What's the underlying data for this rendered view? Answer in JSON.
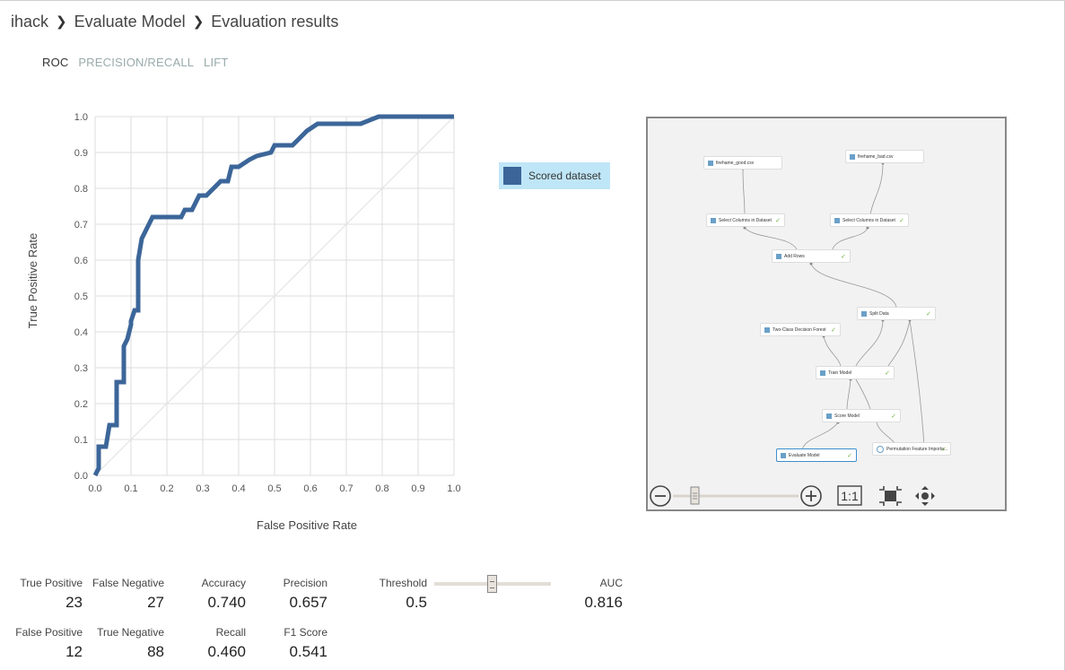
{
  "breadcrumb": {
    "items": [
      "ihack",
      "Evaluate Model",
      "Evaluation results"
    ]
  },
  "tabs": [
    {
      "label": "ROC",
      "active": true
    },
    {
      "label": "PRECISION/RECALL",
      "active": false
    },
    {
      "label": "LIFT",
      "active": false
    }
  ],
  "chart_data": {
    "type": "line",
    "xlabel": "False Positive Rate",
    "ylabel": "True Positive Rate",
    "xlim": [
      0.0,
      1.0
    ],
    "ylim": [
      0.0,
      1.0
    ],
    "x_ticks": [
      "0.0",
      "0.1",
      "0.2",
      "0.3",
      "0.4",
      "0.5",
      "0.6",
      "0.7",
      "0.8",
      "0.9",
      "1.0"
    ],
    "y_ticks": [
      "0.0",
      "0.1",
      "0.2",
      "0.3",
      "0.4",
      "0.5",
      "0.6",
      "0.7",
      "0.8",
      "0.9",
      "1.0"
    ],
    "grid": true,
    "series": [
      {
        "name": "Scored dataset",
        "color": "#3c6699",
        "x": [
          0.0,
          0.01,
          0.01,
          0.03,
          0.04,
          0.06,
          0.06,
          0.08,
          0.08,
          0.09,
          0.1,
          0.1,
          0.11,
          0.12,
          0.12,
          0.13,
          0.15,
          0.16,
          0.24,
          0.25,
          0.27,
          0.28,
          0.29,
          0.3,
          0.31,
          0.32,
          0.35,
          0.37,
          0.38,
          0.39,
          0.4,
          0.43,
          0.44,
          0.45,
          0.49,
          0.5,
          0.51,
          0.55,
          0.58,
          0.59,
          0.62,
          0.67,
          0.74,
          0.79,
          1.0
        ],
        "y": [
          0.0,
          0.02,
          0.08,
          0.08,
          0.14,
          0.14,
          0.26,
          0.26,
          0.36,
          0.38,
          0.42,
          0.43,
          0.46,
          0.46,
          0.6,
          0.66,
          0.7,
          0.72,
          0.72,
          0.74,
          0.74,
          0.76,
          0.78,
          0.78,
          0.78,
          0.79,
          0.82,
          0.82,
          0.86,
          0.86,
          0.86,
          0.88,
          0.885,
          0.89,
          0.9,
          0.92,
          0.92,
          0.92,
          0.95,
          0.96,
          0.98,
          0.98,
          0.98,
          1.0,
          1.0
        ]
      },
      {
        "name": "",
        "color": "#e4e4e4",
        "x": [
          0.0,
          1.0
        ],
        "y": [
          0.0,
          1.0
        ]
      }
    ],
    "legend": {
      "placement": "right",
      "label": "Scored dataset",
      "color": "#3c6699",
      "highlight": "#bfe6f7"
    }
  },
  "graph": {
    "nodes": [
      {
        "label": "firehame_good.csv",
        "icon": "dataset-icon",
        "check": false
      },
      {
        "label": "firehame_bad.csv",
        "icon": "dataset-icon",
        "check": false
      },
      {
        "label": "Select Columns in Dataset",
        "icon": "module-icon",
        "check": true
      },
      {
        "label": "Select Columns in Dataset",
        "icon": "module-icon",
        "check": true
      },
      {
        "label": "Add Rows",
        "icon": "module-icon",
        "check": true
      },
      {
        "label": "Split Data",
        "icon": "module-icon",
        "check": true
      },
      {
        "label": "Two-Class Decision Forest",
        "icon": "module-icon",
        "check": true
      },
      {
        "label": "Train Model",
        "icon": "module-icon",
        "check": true
      },
      {
        "label": "Score Model",
        "icon": "module-icon",
        "check": true
      },
      {
        "label": "Evaluate Model",
        "icon": "module-icon",
        "check": true
      },
      {
        "label": "Permutation Feature Importa...",
        "icon": "search-icon",
        "check": true
      }
    ],
    "controls": {
      "zoom_out": "zoom-out-icon",
      "zoom_in": "zoom-in-icon",
      "actual_size_label": "1:1",
      "fit": "fit-to-screen-icon",
      "pan": "pan-icon",
      "zoom_level": 0.2
    }
  },
  "metrics": {
    "true_positive": {
      "label": "True Positive",
      "value": "23"
    },
    "false_negative": {
      "label": "False Negative",
      "value": "27"
    },
    "accuracy": {
      "label": "Accuracy",
      "value": "0.740"
    },
    "precision": {
      "label": "Precision",
      "value": "0.657"
    },
    "false_positive": {
      "label": "False Positive",
      "value": "12"
    },
    "true_negative": {
      "label": "True Negative",
      "value": "88"
    },
    "recall": {
      "label": "Recall",
      "value": "0.460"
    },
    "f1": {
      "label": "F1 Score",
      "value": "0.541"
    },
    "threshold": {
      "label": "Threshold",
      "value": "0.5",
      "slider_position": 0.5
    },
    "auc": {
      "label": "AUC",
      "value": "0.816"
    }
  }
}
